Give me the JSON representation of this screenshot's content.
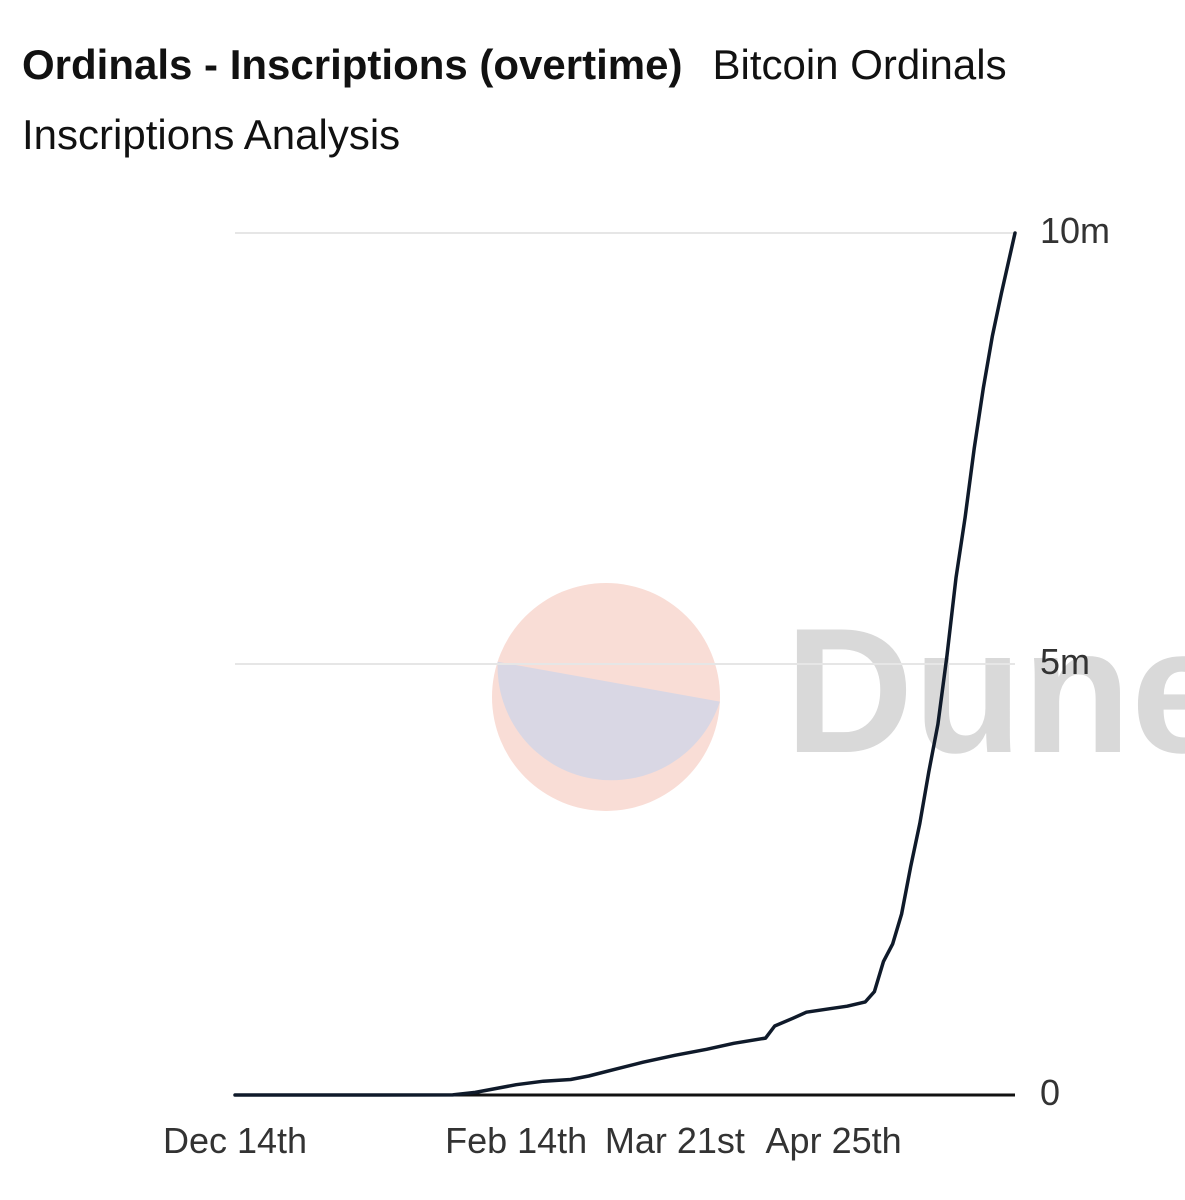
{
  "header": {
    "title": "Ordinals - Inscriptions (overtime)",
    "subtitle": "Bitcoin Ordinals Inscriptions Analysis"
  },
  "watermark": {
    "text": "Dune",
    "colors": {
      "top": "#f9ddd6",
      "bottom": "#d9d7e4",
      "text": "#d9d9d9"
    }
  },
  "colors": {
    "line": "#0f1a2a",
    "grid": "#e6e6e6",
    "axis": "#111111"
  },
  "chart_data": {
    "type": "line",
    "title": "Ordinals - Inscriptions (overtime)",
    "subtitle": "Bitcoin Ordinals Inscriptions Analysis",
    "xlabel": "",
    "ylabel": "",
    "x_range": [
      "2022-12-14",
      "2023-06-04"
    ],
    "y_range": [
      0,
      10000000
    ],
    "grid": true,
    "x_ticks": [
      {
        "date": "2022-12-14",
        "label": "Dec 14th"
      },
      {
        "date": "2023-02-14",
        "label": "Feb 14th"
      },
      {
        "date": "2023-03-21",
        "label": "Mar 21st"
      },
      {
        "date": "2023-04-25",
        "label": "Apr 25th"
      }
    ],
    "y_ticks": [
      {
        "value": 0,
        "label": "0"
      },
      {
        "value": 5000000,
        "label": "5m"
      },
      {
        "value": 10000000,
        "label": "10m"
      }
    ],
    "series": [
      {
        "points": [
          {
            "x": "2022-12-14",
            "y": 0
          },
          {
            "x": "2023-01-15",
            "y": 0
          },
          {
            "x": "2023-01-31",
            "y": 1000
          },
          {
            "x": "2023-02-05",
            "y": 30000
          },
          {
            "x": "2023-02-10",
            "y": 80000
          },
          {
            "x": "2023-02-14",
            "y": 120000
          },
          {
            "x": "2023-02-20",
            "y": 160000
          },
          {
            "x": "2023-02-26",
            "y": 180000
          },
          {
            "x": "2023-03-02",
            "y": 220000
          },
          {
            "x": "2023-03-08",
            "y": 300000
          },
          {
            "x": "2023-03-14",
            "y": 380000
          },
          {
            "x": "2023-03-21",
            "y": 460000
          },
          {
            "x": "2023-03-28",
            "y": 530000
          },
          {
            "x": "2023-04-03",
            "y": 600000
          },
          {
            "x": "2023-04-10",
            "y": 660000
          },
          {
            "x": "2023-04-12",
            "y": 800000
          },
          {
            "x": "2023-04-16",
            "y": 890000
          },
          {
            "x": "2023-04-19",
            "y": 960000
          },
          {
            "x": "2023-04-24",
            "y": 1000000
          },
          {
            "x": "2023-04-28",
            "y": 1030000
          },
          {
            "x": "2023-05-02",
            "y": 1080000
          },
          {
            "x": "2023-05-04",
            "y": 1200000
          },
          {
            "x": "2023-05-06",
            "y": 1550000
          },
          {
            "x": "2023-05-08",
            "y": 1750000
          },
          {
            "x": "2023-05-10",
            "y": 2100000
          },
          {
            "x": "2023-05-12",
            "y": 2650000
          },
          {
            "x": "2023-05-14",
            "y": 3150000
          },
          {
            "x": "2023-05-16",
            "y": 3750000
          },
          {
            "x": "2023-05-18",
            "y": 4300000
          },
          {
            "x": "2023-05-20",
            "y": 5100000
          },
          {
            "x": "2023-05-22",
            "y": 6000000
          },
          {
            "x": "2023-05-24",
            "y": 6700000
          },
          {
            "x": "2023-05-26",
            "y": 7500000
          },
          {
            "x": "2023-05-28",
            "y": 8200000
          },
          {
            "x": "2023-05-30",
            "y": 8800000
          },
          {
            "x": "2023-06-01",
            "y": 9300000
          },
          {
            "x": "2023-06-04",
            "y": 10000000
          }
        ]
      }
    ]
  }
}
